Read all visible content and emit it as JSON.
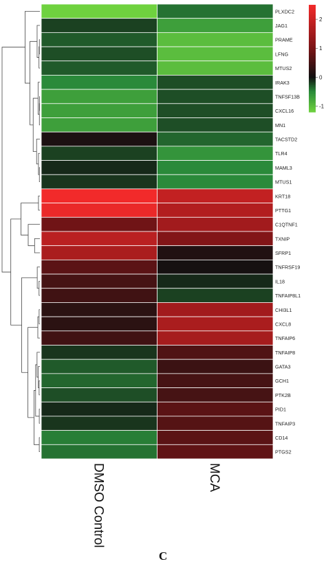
{
  "chart_data": {
    "type": "heatmap",
    "columns": [
      "DMSO Control",
      "MCA"
    ],
    "rows": [
      {
        "gene": "PLXDC2",
        "values": [
          -1.2,
          -0.4
        ]
      },
      {
        "gene": "JAG1",
        "values": [
          -0.2,
          -0.7
        ]
      },
      {
        "gene": "PRAME",
        "values": [
          -0.3,
          -1.0
        ]
      },
      {
        "gene": "LFNG",
        "values": [
          -0.25,
          -1.0
        ]
      },
      {
        "gene": "MTUS2",
        "values": [
          -0.3,
          -1.0
        ]
      },
      {
        "gene": "IRAK3",
        "values": [
          -0.5,
          -0.25
        ]
      },
      {
        "gene": "TNFSF13B",
        "values": [
          -0.7,
          -0.25
        ]
      },
      {
        "gene": "CXCL16",
        "values": [
          -0.7,
          -0.25
        ]
      },
      {
        "gene": "MN1",
        "values": [
          -0.7,
          -0.25
        ]
      },
      {
        "gene": "TACSTD2",
        "values": [
          0.1,
          -0.35
        ]
      },
      {
        "gene": "TLR4",
        "values": [
          -0.2,
          -0.6
        ]
      },
      {
        "gene": "MAML3",
        "values": [
          -0.1,
          -0.5
        ]
      },
      {
        "gene": "MTUS1",
        "values": [
          -0.15,
          -0.5
        ]
      },
      {
        "gene": "KRT18",
        "values": [
          2.5,
          1.9
        ]
      },
      {
        "gene": "PTTG1",
        "values": [
          2.4,
          1.7
        ]
      },
      {
        "gene": "C1QTNF1",
        "values": [
          0.9,
          1.5
        ]
      },
      {
        "gene": "TXNIP",
        "values": [
          1.8,
          1.1
        ]
      },
      {
        "gene": "SFRP1",
        "values": [
          1.6,
          0.15
        ]
      },
      {
        "gene": "TNFRSF19",
        "values": [
          0.7,
          0.05
        ]
      },
      {
        "gene": "IL18",
        "values": [
          0.5,
          -0.1
        ]
      },
      {
        "gene": "TNFAIP8L1",
        "values": [
          0.45,
          -0.2
        ]
      },
      {
        "gene": "CHI3L1",
        "values": [
          0.25,
          1.5
        ]
      },
      {
        "gene": "CXCL8",
        "values": [
          0.25,
          1.6
        ]
      },
      {
        "gene": "TNFAIP6",
        "values": [
          0.45,
          1.55
        ]
      },
      {
        "gene": "TNFAIP8",
        "values": [
          -0.15,
          0.6
        ]
      },
      {
        "gene": "GATA3",
        "values": [
          -0.3,
          0.4
        ]
      },
      {
        "gene": "GCH1",
        "values": [
          -0.35,
          0.5
        ]
      },
      {
        "gene": "PTK2B",
        "values": [
          -0.25,
          0.5
        ]
      },
      {
        "gene": "PID1",
        "values": [
          -0.1,
          0.7
        ]
      },
      {
        "gene": "TNFAIP3",
        "values": [
          -0.15,
          0.65
        ]
      },
      {
        "gene": "CD14",
        "values": [
          -0.45,
          0.7
        ]
      },
      {
        "gene": "PTGS2",
        "values": [
          -0.4,
          0.75
        ]
      }
    ],
    "color_scale": {
      "min": -1.2,
      "max": 2.5,
      "stops": [
        {
          "value": -1.2,
          "color": "#6fd23f"
        },
        {
          "value": -0.5,
          "color": "#2a8a3a"
        },
        {
          "value": 0.0,
          "color": "#111111"
        },
        {
          "value": 1.0,
          "color": "#7a1416"
        },
        {
          "value": 2.5,
          "color": "#f22a2a"
        }
      ]
    },
    "legend_ticks": [
      "2",
      "1",
      "0",
      "-1"
    ],
    "legend_tick_values": [
      2,
      1,
      0,
      -1
    ],
    "row_dendrogram": true
  },
  "panel_label": "C"
}
